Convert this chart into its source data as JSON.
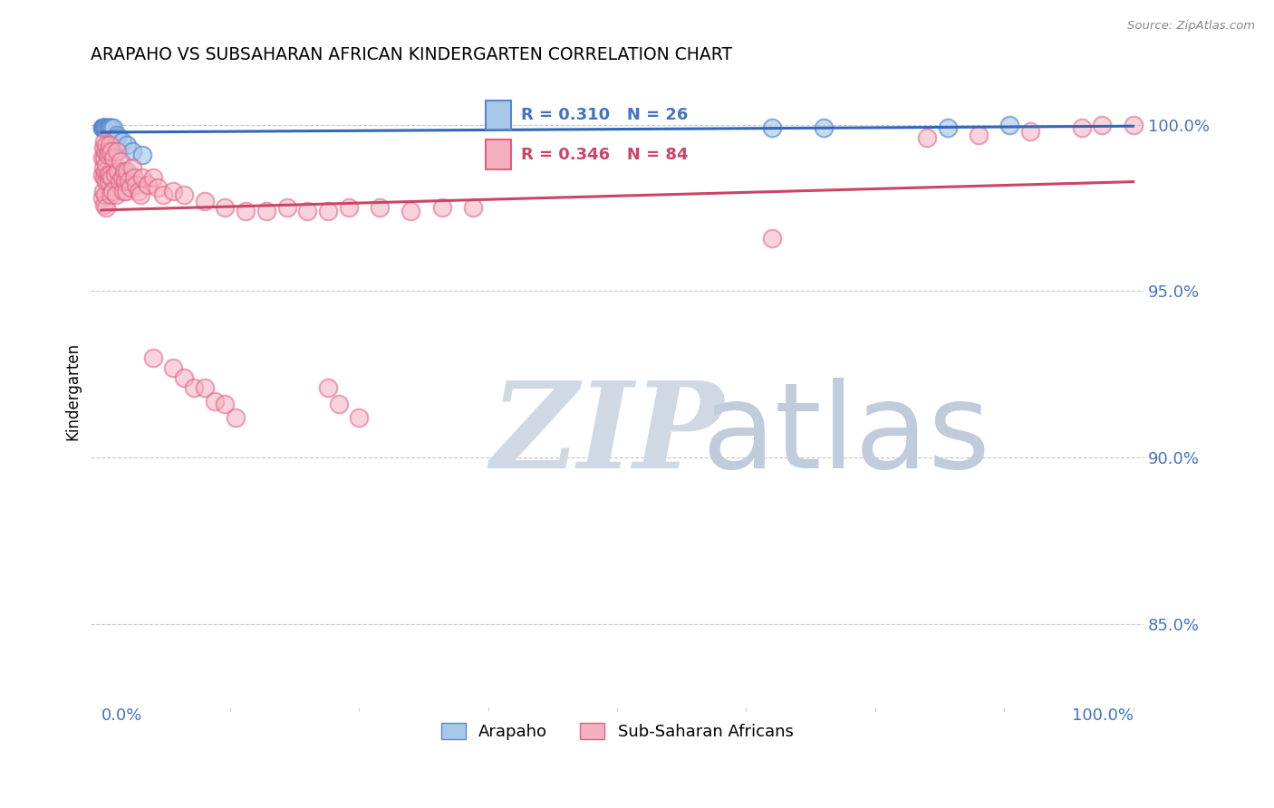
{
  "title": "ARAPAHO VS SUBSAHARAN AFRICAN KINDERGARTEN CORRELATION CHART",
  "source": "Source: ZipAtlas.com",
  "ylabel": "Kindergarten",
  "ytick_labels": [
    "85.0%",
    "90.0%",
    "95.0%",
    "100.0%"
  ],
  "ytick_values": [
    0.85,
    0.9,
    0.95,
    1.0
  ],
  "ylim": [
    0.825,
    1.015
  ],
  "xlim": [
    -0.01,
    1.01
  ],
  "legend_arapaho": "Arapaho",
  "legend_subsaharan": "Sub-Saharan Africans",
  "R_arapaho": 0.31,
  "N_arapaho": 26,
  "R_subsaharan": 0.346,
  "N_subsaharan": 84,
  "color_arapaho_fill": "#a8c8e8",
  "color_arapaho_edge": "#5588cc",
  "color_subsaharan_fill": "#f4b0c0",
  "color_subsaharan_edge": "#e06080",
  "color_trend_arapaho": "#3366bb",
  "color_trend_subsaharan": "#cc4466",
  "color_axis_labels": "#4472c4",
  "color_grid": "#c8c8c8",
  "watermark_zip": "ZIP",
  "watermark_atlas": "atlas",
  "watermark_color_zip": "#d0d8e4",
  "watermark_color_atlas": "#c0ccdc",
  "arapaho_x": [
    0.001,
    0.001,
    0.002,
    0.002,
    0.003,
    0.003,
    0.004,
    0.004,
    0.005,
    0.005,
    0.006,
    0.007,
    0.008,
    0.009,
    0.01,
    0.012,
    0.015,
    0.015,
    0.02,
    0.025,
    0.03,
    0.04,
    0.65,
    0.7,
    0.82,
    0.88
  ],
  "arapaho_y": [
    0.999,
    0.999,
    0.999,
    0.999,
    0.999,
    0.999,
    0.999,
    0.999,
    0.999,
    0.999,
    0.999,
    0.999,
    0.999,
    0.999,
    0.999,
    0.999,
    0.997,
    0.996,
    0.995,
    0.994,
    0.992,
    0.991,
    0.999,
    0.999,
    0.999,
    1.0
  ],
  "subsaharan_x": [
    0.001,
    0.001,
    0.001,
    0.002,
    0.002,
    0.002,
    0.003,
    0.003,
    0.003,
    0.003,
    0.004,
    0.004,
    0.004,
    0.005,
    0.005,
    0.005,
    0.005,
    0.006,
    0.006,
    0.007,
    0.007,
    0.008,
    0.008,
    0.009,
    0.01,
    0.01,
    0.011,
    0.012,
    0.013,
    0.014,
    0.015,
    0.016,
    0.018,
    0.019,
    0.02,
    0.021,
    0.022,
    0.023,
    0.024,
    0.025,
    0.027,
    0.028,
    0.03,
    0.032,
    0.034,
    0.036,
    0.038,
    0.04,
    0.045,
    0.05,
    0.055,
    0.06,
    0.07,
    0.08,
    0.1,
    0.12,
    0.14,
    0.16,
    0.18,
    0.2,
    0.22,
    0.24,
    0.27,
    0.3,
    0.33,
    0.36,
    0.65,
    0.8,
    0.85,
    0.9,
    0.95,
    0.97,
    1.0,
    0.22,
    0.23,
    0.25,
    0.05,
    0.07,
    0.08,
    0.09,
    0.1,
    0.11,
    0.12,
    0.13
  ],
  "subsaharan_y": [
    0.99,
    0.985,
    0.978,
    0.993,
    0.987,
    0.98,
    0.995,
    0.99,
    0.984,
    0.976,
    0.992,
    0.986,
    0.979,
    0.994,
    0.988,
    0.983,
    0.975,
    0.991,
    0.985,
    0.992,
    0.983,
    0.994,
    0.985,
    0.979,
    0.992,
    0.984,
    0.98,
    0.99,
    0.985,
    0.979,
    0.992,
    0.986,
    0.983,
    0.989,
    0.984,
    0.98,
    0.986,
    0.983,
    0.98,
    0.986,
    0.983,
    0.981,
    0.987,
    0.984,
    0.982,
    0.98,
    0.979,
    0.984,
    0.982,
    0.984,
    0.981,
    0.979,
    0.98,
    0.979,
    0.977,
    0.975,
    0.974,
    0.974,
    0.975,
    0.974,
    0.974,
    0.975,
    0.975,
    0.974,
    0.975,
    0.975,
    0.966,
    0.996,
    0.997,
    0.998,
    0.999,
    1.0,
    1.0,
    0.921,
    0.916,
    0.912,
    0.93,
    0.927,
    0.924,
    0.921,
    0.921,
    0.917,
    0.916,
    0.912
  ]
}
